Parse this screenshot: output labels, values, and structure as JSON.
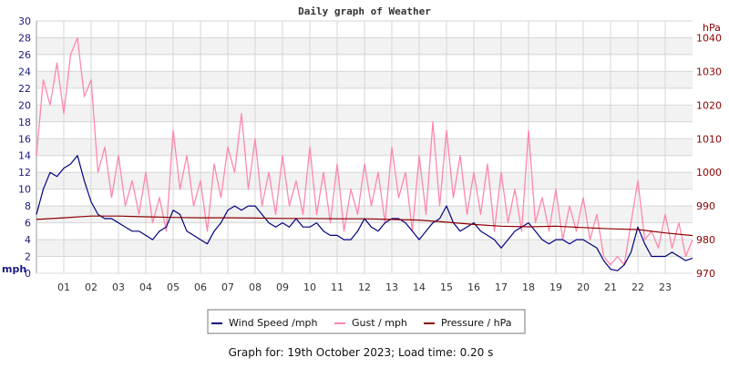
{
  "chart_data": {
    "type": "line",
    "title": "Daily graph of Weather",
    "left_axis": {
      "label": "mph",
      "ylim": [
        0,
        30
      ],
      "ticks": [
        "0",
        "2",
        "4",
        "6",
        "8",
        "10",
        "12",
        "14",
        "16",
        "18",
        "20",
        "22",
        "24",
        "26",
        "28",
        "30"
      ]
    },
    "right_axis": {
      "label": "hPa",
      "ylim": [
        970,
        1045
      ],
      "ticks": [
        "970",
        "980",
        "990",
        "1000",
        "1010",
        "1020",
        "1030",
        "1040"
      ]
    },
    "x_axis": {
      "xlim": [
        0,
        24
      ],
      "ticks": [
        "01",
        "02",
        "03",
        "04",
        "05",
        "06",
        "07",
        "08",
        "09",
        "10",
        "11",
        "12",
        "13",
        "14",
        "15",
        "16",
        "17",
        "18",
        "19",
        "20",
        "21",
        "22",
        "23"
      ]
    },
    "grid": true,
    "legend_position": "bottom",
    "series": [
      {
        "name": "Wind Speed /mph",
        "color": "#000080",
        "axis": "left",
        "x_step": 0.25,
        "values": [
          7,
          10,
          12,
          11.5,
          12.5,
          13,
          14,
          11,
          8.5,
          7,
          6.5,
          6.5,
          6,
          5.5,
          5,
          5,
          4.5,
          4,
          5,
          5.5,
          7.5,
          7,
          5,
          4.5,
          4,
          3.5,
          5,
          6,
          7.5,
          8,
          7.5,
          8,
          8,
          7,
          6,
          5.5,
          6,
          5.5,
          6.5,
          5.5,
          5.5,
          6,
          5,
          4.5,
          4.5,
          4,
          4,
          5,
          6.5,
          5.5,
          5,
          6,
          6.5,
          6.5,
          6,
          5,
          4,
          5,
          6,
          6.5,
          8,
          6,
          5,
          5.5,
          6,
          5,
          4.5,
          4,
          3,
          4,
          5,
          5.5,
          6,
          5,
          4,
          3.5,
          4,
          4,
          3.5,
          4,
          4,
          3.5,
          3,
          1.5,
          0.5,
          0.3,
          1,
          2.5,
          5.5,
          3.5,
          2,
          2,
          2,
          2.5,
          2,
          1.5,
          1.8
        ]
      },
      {
        "name": "Gust / mph",
        "color": "#ff88aa",
        "axis": "left",
        "x_step": 0.25,
        "values": [
          14,
          23,
          20,
          25,
          19,
          26,
          28,
          21,
          23,
          12,
          15,
          9,
          14,
          8,
          11,
          7,
          12,
          6,
          9,
          5,
          17,
          10,
          14,
          8,
          11,
          5,
          13,
          9,
          15,
          12,
          19,
          10,
          16,
          8,
          12,
          7,
          14,
          8,
          11,
          7,
          15,
          7,
          12,
          6,
          13,
          5,
          10,
          7,
          13,
          8,
          12,
          6,
          15,
          9,
          12,
          5,
          14,
          7,
          18,
          8,
          17,
          9,
          14,
          7,
          12,
          7,
          13,
          5,
          12,
          6,
          10,
          5,
          17,
          6,
          9,
          5,
          10,
          4,
          8,
          5,
          9,
          4,
          7,
          2,
          1,
          2,
          1,
          6,
          11,
          4,
          5,
          3,
          7,
          3,
          6,
          2,
          4
        ]
      },
      {
        "name": "Pressure / hPa",
        "color": "#8b0000",
        "axis": "right",
        "x_step": 1,
        "values": [
          986,
          986.5,
          987,
          987,
          986.8,
          986.6,
          986.5,
          986.5,
          986.4,
          986.3,
          986.3,
          986.2,
          986.2,
          986,
          985.8,
          985.2,
          984.5,
          984,
          983.8,
          984,
          983.6,
          983.2,
          983,
          982,
          981.2
        ]
      }
    ]
  },
  "footer": "Graph for: 19th October 2023; Load time: 0.20 s"
}
